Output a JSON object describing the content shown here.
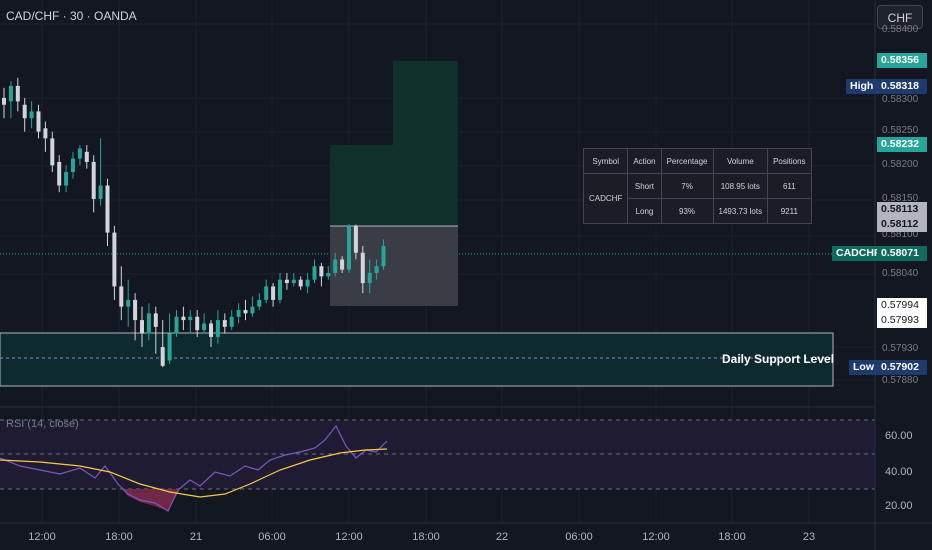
{
  "header": {
    "symbol_title": "CAD/CHF · 30 · OANDA",
    "currency_button": "CHF"
  },
  "price_axis": {
    "ticks": [
      "0.58400",
      "0.58300",
      "0.58250",
      "0.58200",
      "0.58150",
      "0.58100",
      "0.58040",
      "0.57930",
      "0.57880"
    ],
    "tags": {
      "target_top": "0.58356",
      "high_label": "High",
      "high_value": "0.58318",
      "target_mid": "0.58232",
      "entry_1": "0.58113",
      "entry_2": "0.58112",
      "symbol_label": "CADCHF",
      "current_price": "0.58071",
      "level_1": "0.57994",
      "level_2": "0.57993",
      "low_label": "Low",
      "low_value": "0.57902"
    }
  },
  "time_axis": {
    "ticks": [
      "12:00",
      "18:00",
      "21",
      "06:00",
      "12:00",
      "18:00",
      "22",
      "06:00",
      "12:00",
      "18:00",
      "23"
    ]
  },
  "support": {
    "label": "Daily Support Level"
  },
  "positions_table": {
    "headers": [
      "Symbol",
      "Action",
      "Percentage",
      "Volume",
      "Positions"
    ],
    "symbol": "CADCHF",
    "rows": [
      {
        "action": "Short",
        "percentage": "7%",
        "volume": "108.95 lots",
        "positions": "611"
      },
      {
        "action": "Long",
        "percentage": "93%",
        "volume": "1493.73 lots",
        "positions": "9211"
      }
    ]
  },
  "rsi": {
    "label": "RSI (14, close)",
    "ticks": [
      "60.00",
      "40.00",
      "20.00"
    ]
  },
  "colors": {
    "background": "#131722",
    "up_candle": "#26a69a",
    "down_candle": "#d1d4dc",
    "rsi_line": "#7e57c2",
    "rsi_ma": "#f7c948",
    "support_zone": "#0d2a2e",
    "target_zone": "#10302c"
  },
  "chart_data": {
    "type": "candlestick",
    "note_units": "price in CHF",
    "candles": [
      [
        0.583,
        0.5829,
        0.58315,
        0.5827
      ],
      [
        0.58295,
        0.58318,
        0.58325,
        0.5827
      ],
      [
        0.58318,
        0.58295,
        0.5833,
        0.5828
      ],
      [
        0.5829,
        0.5827,
        0.583,
        0.5825
      ],
      [
        0.5827,
        0.5828,
        0.58295,
        0.58255
      ],
      [
        0.5828,
        0.5825,
        0.5829,
        0.5824
      ],
      [
        0.58255,
        0.5824,
        0.58265,
        0.5822
      ],
      [
        0.5824,
        0.582,
        0.5825,
        0.5819
      ],
      [
        0.58205,
        0.5817,
        0.58215,
        0.5816
      ],
      [
        0.5817,
        0.5819,
        0.582,
        0.5816
      ],
      [
        0.5819,
        0.5821,
        0.5822,
        0.5818
      ],
      [
        0.5821,
        0.58225,
        0.5823,
        0.582
      ],
      [
        0.5822,
        0.58205,
        0.5823,
        0.58195
      ],
      [
        0.58205,
        0.5815,
        0.58215,
        0.5813
      ],
      [
        0.5815,
        0.5817,
        0.5824,
        0.5814
      ],
      [
        0.5817,
        0.581,
        0.5818,
        0.5808
      ],
      [
        0.581,
        0.5802,
        0.5811,
        0.58
      ],
      [
        0.5802,
        0.5799,
        0.5805,
        0.5797
      ],
      [
        0.5799,
        0.58,
        0.5803,
        0.5796
      ],
      [
        0.58,
        0.5797,
        0.5801,
        0.5794
      ],
      [
        0.5797,
        0.5795,
        0.5799,
        0.5793
      ],
      [
        0.5795,
        0.5798,
        0.57995,
        0.5794
      ],
      [
        0.5798,
        0.5796,
        0.5799,
        0.5792
      ],
      [
        0.5793,
        0.57902,
        0.5797,
        0.579
      ],
      [
        0.5791,
        0.5795,
        0.5798,
        0.57905
      ],
      [
        0.5795,
        0.57975,
        0.57985,
        0.57945
      ],
      [
        0.57975,
        0.5797,
        0.5799,
        0.57955
      ],
      [
        0.5797,
        0.57975,
        0.57985,
        0.5795
      ],
      [
        0.57975,
        0.57955,
        0.57985,
        0.57945
      ],
      [
        0.57955,
        0.57965,
        0.5798,
        0.5795
      ],
      [
        0.57965,
        0.57945,
        0.5797,
        0.5793
      ],
      [
        0.57945,
        0.5797,
        0.57985,
        0.57935
      ],
      [
        0.5797,
        0.5796,
        0.5798,
        0.5795
      ],
      [
        0.5796,
        0.57975,
        0.57985,
        0.57955
      ],
      [
        0.57975,
        0.57985,
        0.57995,
        0.57965
      ],
      [
        0.57985,
        0.5798,
        0.58,
        0.5797
      ],
      [
        0.5798,
        0.5799,
        0.58005,
        0.57975
      ],
      [
        0.5799,
        0.58,
        0.5801,
        0.57985
      ],
      [
        0.58,
        0.5802,
        0.5803,
        0.57995
      ],
      [
        0.5802,
        0.58,
        0.58025,
        0.5799
      ],
      [
        0.58,
        0.5803,
        0.5804,
        0.57995
      ],
      [
        0.5803,
        0.58025,
        0.5804,
        0.58015
      ],
      [
        0.58025,
        0.5803,
        0.5804,
        0.5802
      ],
      [
        0.5803,
        0.5802,
        0.58035,
        0.58015
      ],
      [
        0.5802,
        0.5803,
        0.5804,
        0.5801
      ],
      [
        0.5803,
        0.5805,
        0.5806,
        0.58025
      ],
      [
        0.5805,
        0.58035,
        0.58055,
        0.5802
      ],
      [
        0.58035,
        0.5804,
        0.5805,
        0.5803
      ],
      [
        0.5804,
        0.5806,
        0.5807,
        0.58035
      ],
      [
        0.5806,
        0.58045,
        0.58065,
        0.5804
      ],
      [
        0.58045,
        0.5811,
        0.58113,
        0.5804
      ],
      [
        0.5811,
        0.5807,
        0.58112,
        0.5806
      ],
      [
        0.5807,
        0.58025,
        0.5808,
        0.5801
      ],
      [
        0.58025,
        0.5804,
        0.5806,
        0.5801
      ],
      [
        0.5804,
        0.5805,
        0.5806,
        0.5803
      ],
      [
        0.5805,
        0.5808,
        0.5809,
        0.58045
      ]
    ]
  }
}
